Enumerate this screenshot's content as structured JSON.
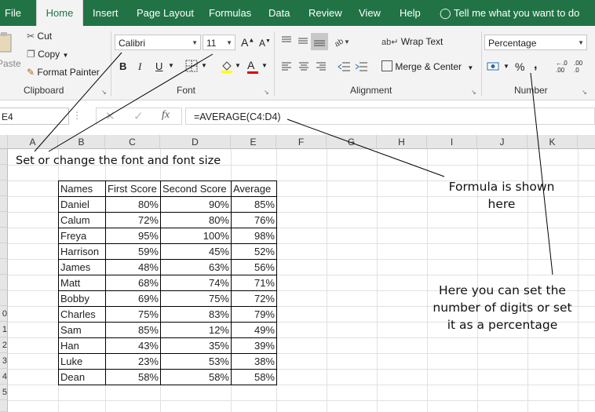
{
  "tabs": [
    "File",
    "Home",
    "Insert",
    "Page Layout",
    "Formulas",
    "Data",
    "Review",
    "View",
    "Help"
  ],
  "tell_me": "Tell me what you want to do",
  "clipboard": {
    "paste": "Paste",
    "cut": "Cut",
    "copy": "Copy",
    "format_painter": "Format Painter",
    "group": "Clipboard"
  },
  "font": {
    "name": "Calibri",
    "size": "11",
    "grow": "A",
    "shrink": "A",
    "bold": "B",
    "italic": "I",
    "underline": "U",
    "font_color": "A",
    "group": "Font"
  },
  "alignment": {
    "wrap_text": "Wrap Text",
    "merge_center": "Merge & Center",
    "group": "Alignment"
  },
  "number": {
    "format": "Percentage",
    "percent": "%",
    "comma": ",",
    "inc_decimal": ".00",
    "dec_decimal": ".0",
    "group": "Number"
  },
  "formula_bar": {
    "name_box": "E4",
    "fx": "fx",
    "formula": "=AVERAGE(C4:D4)"
  },
  "columns": [
    "A",
    "B",
    "C",
    "D",
    "E",
    "F",
    "G",
    "H",
    "I",
    "J",
    "K"
  ],
  "row_numbers": [
    "",
    "",
    "",
    "",
    "",
    "",
    "",
    "",
    "",
    "",
    "0",
    "1",
    "2",
    "3",
    "4",
    "5",
    ""
  ],
  "table": {
    "headers": [
      "Names",
      "First Score",
      "Second Score",
      "Average"
    ],
    "rows": [
      [
        "Daniel",
        "80%",
        "90%",
        "85%"
      ],
      [
        "Calum",
        "72%",
        "80%",
        "76%"
      ],
      [
        "Freya",
        "95%",
        "100%",
        "98%"
      ],
      [
        "Harrison",
        "59%",
        "45%",
        "52%"
      ],
      [
        "James",
        "48%",
        "63%",
        "56%"
      ],
      [
        "Matt",
        "68%",
        "74%",
        "71%"
      ],
      [
        "Bobby",
        "69%",
        "75%",
        "72%"
      ],
      [
        "Charles",
        "75%",
        "83%",
        "79%"
      ],
      [
        "Sam",
        "85%",
        "12%",
        "49%"
      ],
      [
        "Han",
        "43%",
        "35%",
        "39%"
      ],
      [
        "Luke",
        "23%",
        "53%",
        "38%"
      ],
      [
        "Dean",
        "58%",
        "58%",
        "58%"
      ]
    ]
  },
  "annotations": {
    "font": "Set or change the font and font size",
    "formula_line1": "Formula is shown",
    "formula_line2": "here",
    "number_line1": "Here you can set the",
    "number_line2": "number of digits or set",
    "number_line3": "it as a percentage"
  }
}
